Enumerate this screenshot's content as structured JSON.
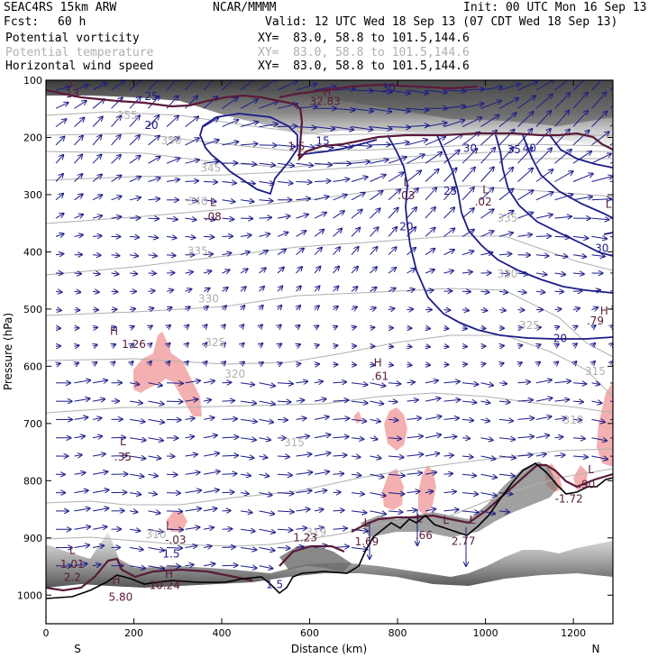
{
  "header": {
    "model": "SEAC4RS 15km ARW",
    "center": "NCAR/MMMM",
    "init": "Init: 00 UTC Mon 16 Sep 13",
    "fcst_label": "Fcst:",
    "fcst_value": "60 h",
    "valid": "Valid: 12 UTC Wed 18 Sep 13 (07 CDT Wed 18 Sep 13)",
    "fields": [
      {
        "name": "Potential vorticity",
        "xy": "XY=  83.0, 58.8 to 101.5,144.6",
        "color": "#000000"
      },
      {
        "name": "Potential temperature",
        "xy": "XY=  83.0, 58.8 to 101.5,144.6",
        "color": "#b0b0b0"
      },
      {
        "name": "Horizontal wind speed",
        "xy": "XY=  83.0, 58.8 to 101.5,144.6",
        "color": "#000000"
      }
    ]
  },
  "chart_data": {
    "type": "cross-section",
    "xlabel": "Distance (km)",
    "ylabel": "Pressure (hPa)",
    "xlim": [
      0,
      1290
    ],
    "ylim": [
      1050,
      100
    ],
    "x_ticks": [
      0,
      200,
      400,
      600,
      800,
      1000,
      1200
    ],
    "y_ticks": [
      100,
      200,
      300,
      400,
      500,
      600,
      700,
      800,
      900,
      1000
    ],
    "endpoint_labels": {
      "left": "S",
      "right": "N"
    },
    "colors": {
      "wind_speed": "#1c1c8a",
      "theta": "#b0b0b0",
      "pv": "#5a1a3a",
      "shading": "#f4b0b0"
    },
    "wind_speed_labels": [
      {
        "x": 240,
        "p": 135,
        "text": "25"
      },
      {
        "x": 780,
        "p": 120,
        "text": "30"
      },
      {
        "x": 240,
        "p": 185,
        "text": "20"
      },
      {
        "x": 630,
        "p": 213,
        "text": "15"
      },
      {
        "x": 965,
        "p": 225,
        "text": "30"
      },
      {
        "x": 1065,
        "p": 228,
        "text": "35"
      },
      {
        "x": 1100,
        "p": 225,
        "text": "40"
      },
      {
        "x": 920,
        "p": 300,
        "text": "25"
      },
      {
        "x": 820,
        "p": 362,
        "text": "20"
      },
      {
        "x": 1265,
        "p": 400,
        "text": "30"
      },
      {
        "x": 1170,
        "p": 558,
        "text": "20"
      },
      {
        "x": 285,
        "p": 934,
        "text": "1.5"
      },
      {
        "x": 520,
        "p": 988,
        "text": "1.5"
      }
    ],
    "theta_labels": [
      {
        "x": 185,
        "p": 168,
        "text": "355"
      },
      {
        "x": 285,
        "p": 212,
        "text": "350"
      },
      {
        "x": 375,
        "p": 260,
        "text": "345"
      },
      {
        "x": 345,
        "p": 318,
        "text": "340"
      },
      {
        "x": 345,
        "p": 405,
        "text": "335"
      },
      {
        "x": 370,
        "p": 488,
        "text": "330"
      },
      {
        "x": 385,
        "p": 565,
        "text": "325"
      },
      {
        "x": 430,
        "p": 620,
        "text": "320"
      },
      {
        "x": 565,
        "p": 740,
        "text": "315"
      },
      {
        "x": 1250,
        "p": 615,
        "text": "315"
      },
      {
        "x": 1100,
        "p": 535,
        "text": "325"
      },
      {
        "x": 1050,
        "p": 445,
        "text": "330"
      },
      {
        "x": 1050,
        "p": 347,
        "text": "335"
      },
      {
        "x": 1200,
        "p": 700,
        "text": "310"
      },
      {
        "x": 250,
        "p": 900,
        "text": "310"
      },
      {
        "x": 615,
        "p": 896,
        "text": "319"
      }
    ],
    "pv_labels": [
      {
        "x": 60,
        "p": 130,
        "text": "13"
      },
      {
        "x": 635,
        "p": 143,
        "text": "32.83"
      },
      {
        "x": 570,
        "p": 222,
        "text": "1.5"
      },
      {
        "x": 820,
        "p": 308,
        "text": ".03"
      },
      {
        "x": 995,
        "p": 319,
        "text": ".02"
      },
      {
        "x": 380,
        "p": 345,
        "text": ".08"
      },
      {
        "x": 1250,
        "p": 527,
        "text": ".79"
      },
      {
        "x": 200,
        "p": 568,
        "text": "1.26"
      },
      {
        "x": 760,
        "p": 624,
        "text": ".61"
      },
      {
        "x": 175,
        "p": 765,
        "text": ".35"
      },
      {
        "x": 1230,
        "p": 813,
        "text": ".90"
      },
      {
        "x": 1190,
        "p": 838,
        "text": "-1.72"
      },
      {
        "x": 295,
        "p": 910,
        "text": "-.03"
      },
      {
        "x": 730,
        "p": 913,
        "text": "1.69"
      },
      {
        "x": 860,
        "p": 902,
        "text": ".66"
      },
      {
        "x": 950,
        "p": 912,
        "text": "2.77"
      },
      {
        "x": 60,
        "p": 952,
        "text": "1.01"
      },
      {
        "x": 60,
        "p": 975,
        "text": "2.2"
      },
      {
        "x": 590,
        "p": 906,
        "text": "1.23"
      },
      {
        "x": 270,
        "p": 989,
        "text": "10.24"
      },
      {
        "x": 170,
        "p": 1010,
        "text": "5.80"
      }
    ],
    "extrema_letters": [
      {
        "x": 60,
        "p": 110,
        "text": "L"
      },
      {
        "x": 640,
        "p": 127,
        "text": "H"
      },
      {
        "x": 380,
        "p": 320,
        "text": "L"
      },
      {
        "x": 820,
        "p": 285,
        "text": "L"
      },
      {
        "x": 1000,
        "p": 298,
        "text": "L"
      },
      {
        "x": 1270,
        "p": 510,
        "text": "H"
      },
      {
        "x": 1280,
        "p": 323,
        "text": "L"
      },
      {
        "x": 155,
        "p": 545,
        "text": "H"
      },
      {
        "x": 755,
        "p": 600,
        "text": "H"
      },
      {
        "x": 175,
        "p": 738,
        "text": "L"
      },
      {
        "x": 1240,
        "p": 787,
        "text": "L"
      },
      {
        "x": 280,
        "p": 885,
        "text": "L"
      },
      {
        "x": 730,
        "p": 880,
        "text": "L"
      },
      {
        "x": 850,
        "p": 873,
        "text": "L"
      },
      {
        "x": 910,
        "p": 875,
        "text": "L"
      },
      {
        "x": 970,
        "p": 875,
        "text": "L"
      },
      {
        "x": 60,
        "p": 928,
        "text": "L"
      },
      {
        "x": 280,
        "p": 970,
        "text": "H"
      },
      {
        "x": 160,
        "p": 980,
        "text": "H"
      }
    ]
  }
}
